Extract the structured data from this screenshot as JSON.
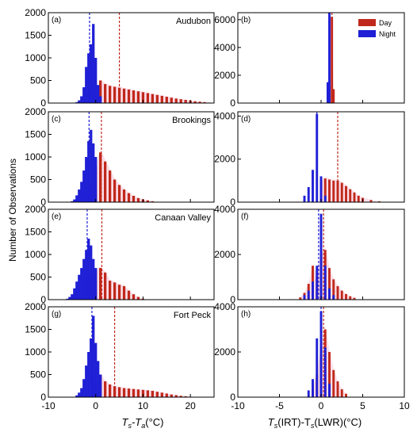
{
  "figure": {
    "ylabel": "Number of Observations",
    "xlabel_left": {
      "main": "T",
      "sub1": "s",
      "mid": "-T",
      "sub2": "a",
      "unit": "(°C)"
    },
    "xlabel_right": {
      "main": "T",
      "sub1": "s",
      "mid": "(IRT)-T",
      "sub2": "s",
      "unit": "(LWR)(°C)"
    },
    "legend": [
      {
        "label": "Day",
        "color": "#c0281b"
      },
      {
        "label": "Night",
        "color": "#1f1fd6"
      }
    ],
    "colors": {
      "day": "#c0281b",
      "night": "#1f1fd6",
      "shade": "#f7c6d8"
    }
  },
  "chart_data": [
    {
      "id": "a",
      "panel_label": "(a)",
      "site": "Audubon",
      "type": "bar",
      "xlim": [
        -10,
        25
      ],
      "ylim": [
        0,
        2000
      ],
      "yticks": [
        "0",
        "500",
        "1000",
        "1500",
        "2000"
      ],
      "xticks": [
        "-10",
        "0",
        "10",
        "20"
      ],
      "mean_night": -1.3,
      "mean_day": 5.0,
      "series": [
        {
          "name": "Night",
          "x": [
            -4,
            -3.5,
            -3,
            -2.5,
            -2,
            -1.5,
            -1,
            -0.5,
            0,
            0.5,
            1
          ],
          "values": [
            20,
            60,
            150,
            350,
            800,
            1100,
            1300,
            1750,
            1000,
            400,
            150
          ]
        },
        {
          "name": "Day",
          "x": [
            0,
            1,
            2,
            3,
            4,
            5,
            6,
            7,
            8,
            9,
            10,
            11,
            12,
            13,
            14,
            15,
            16,
            17,
            18,
            19,
            20,
            21,
            22,
            23,
            24
          ],
          "values": [
            150,
            500,
            420,
            380,
            360,
            340,
            320,
            300,
            280,
            260,
            240,
            220,
            200,
            180,
            160,
            140,
            120,
            100,
            85,
            70,
            55,
            40,
            30,
            20,
            10
          ]
        }
      ]
    },
    {
      "id": "b",
      "panel_label": "(b)",
      "site": "",
      "type": "bar",
      "xlim": [
        -10,
        10
      ],
      "ylim": [
        0,
        6500
      ],
      "yticks": [
        "0",
        "2000",
        "4000",
        "6000"
      ],
      "xticks": [
        "-10",
        "-5",
        "0",
        "5",
        "10"
      ],
      "mean_night": 1.0,
      "mean_day": 1.3,
      "series": [
        {
          "name": "Night",
          "x": [
            0.8,
            1.0
          ],
          "values": [
            1500,
            6500
          ]
        },
        {
          "name": "Day",
          "x": [
            1.3,
            1.5
          ],
          "values": [
            6200,
            1000
          ]
        }
      ]
    },
    {
      "id": "c",
      "panel_label": "(c)",
      "site": "Brookings",
      "type": "bar",
      "xlim": [
        -10,
        25
      ],
      "ylim": [
        0,
        2000
      ],
      "yticks": [
        "0",
        "500",
        "1000",
        "1500",
        "2000"
      ],
      "xticks": [
        "-10",
        "0",
        "10",
        "20"
      ],
      "mean_night": -1.4,
      "mean_day": 1.2,
      "series": [
        {
          "name": "Night",
          "x": [
            -5,
            -4.5,
            -4,
            -3.5,
            -3,
            -2.5,
            -2,
            -1.5,
            -1,
            -0.5,
            0
          ],
          "values": [
            20,
            60,
            150,
            280,
            450,
            700,
            1000,
            1350,
            1600,
            1300,
            1000
          ]
        },
        {
          "name": "Day",
          "x": [
            -1,
            0,
            1,
            2,
            3,
            4,
            5,
            6,
            7,
            8,
            9,
            10,
            11,
            12
          ],
          "values": [
            400,
            800,
            1100,
            900,
            700,
            500,
            380,
            280,
            200,
            140,
            90,
            60,
            40,
            20
          ]
        }
      ]
    },
    {
      "id": "d",
      "panel_label": "(d)",
      "site": "",
      "type": "bar",
      "xlim": [
        -10,
        10
      ],
      "ylim": [
        0,
        4200
      ],
      "yticks": [
        "0",
        "2000",
        "4000"
      ],
      "xticks": [
        "-10",
        "-5",
        "0",
        "5",
        "10"
      ],
      "mean_night": -0.5,
      "mean_day": 2.0,
      "series": [
        {
          "name": "Night",
          "x": [
            -2,
            -1.5,
            -1,
            -0.5,
            0,
            0.5
          ],
          "values": [
            300,
            700,
            1500,
            4100,
            1200,
            300
          ]
        },
        {
          "name": "Day",
          "x": [
            0,
            0.5,
            1,
            1.5,
            2,
            2.5,
            3,
            3.5,
            4,
            4.5,
            5,
            6,
            7
          ],
          "values": [
            1000,
            1100,
            1050,
            1000,
            1000,
            900,
            750,
            600,
            450,
            300,
            200,
            100,
            40
          ]
        }
      ]
    },
    {
      "id": "e",
      "panel_label": "(e)",
      "site": "Canaan Valley",
      "type": "bar",
      "xlim": [
        -10,
        25
      ],
      "ylim": [
        0,
        2000
      ],
      "yticks": [
        "0",
        "500",
        "1000",
        "1500",
        "2000"
      ],
      "xticks": [
        "-10",
        "0",
        "10",
        "20"
      ],
      "mean_night": -1.8,
      "mean_day": 1.3,
      "series": [
        {
          "name": "Night",
          "x": [
            -6,
            -5.5,
            -5,
            -4.5,
            -4,
            -3.5,
            -3,
            -2.5,
            -2,
            -1.5,
            -1,
            -0.5,
            0
          ],
          "values": [
            20,
            60,
            120,
            250,
            400,
            550,
            700,
            900,
            1100,
            1350,
            1200,
            900,
            700
          ]
        },
        {
          "name": "Day",
          "x": [
            -1,
            0,
            1,
            2,
            3,
            4,
            5,
            6,
            7,
            8,
            9,
            10
          ],
          "values": [
            500,
            650,
            700,
            600,
            420,
            380,
            330,
            300,
            200,
            120,
            60,
            20
          ]
        }
      ]
    },
    {
      "id": "f",
      "panel_label": "(f)",
      "site": "",
      "type": "bar",
      "xlim": [
        -10,
        10
      ],
      "ylim": [
        0,
        4000
      ],
      "yticks": [
        "0",
        "2000",
        "4000"
      ],
      "xticks": [
        "-10",
        "-5",
        "0",
        "5",
        "10"
      ],
      "mean_night": -0.3,
      "mean_day": 0.3,
      "series": [
        {
          "name": "Night",
          "x": [
            -2,
            -1.5,
            -1,
            -0.5,
            0,
            0.5,
            1,
            1.5
          ],
          "values": [
            200,
            400,
            800,
            1500,
            3800,
            1500,
            500,
            200
          ]
        },
        {
          "name": "Day",
          "x": [
            -2.5,
            -2,
            -1.5,
            -1,
            -0.5,
            0,
            0.5,
            1,
            1.5,
            2,
            2.5,
            3,
            3.5,
            4
          ],
          "values": [
            100,
            300,
            700,
            1500,
            1000,
            2000,
            2200,
            1400,
            900,
            600,
            400,
            250,
            150,
            80
          ]
        }
      ]
    },
    {
      "id": "g",
      "panel_label": "(g)",
      "site": "Fort Peck",
      "type": "bar",
      "xlim": [
        -10,
        25
      ],
      "ylim": [
        0,
        2000
      ],
      "yticks": [
        "0",
        "500",
        "1000",
        "1500",
        "2000"
      ],
      "xticks": [
        "-10",
        "0",
        "10",
        "20"
      ],
      "mean_night": -0.8,
      "mean_day": 4.0,
      "series": [
        {
          "name": "Night",
          "x": [
            -4,
            -3.5,
            -3,
            -2.5,
            -2,
            -1.5,
            -1,
            -0.5,
            0,
            0.5,
            1
          ],
          "values": [
            40,
            100,
            200,
            400,
            700,
            1000,
            1300,
            1800,
            1200,
            800,
            500
          ]
        },
        {
          "name": "Day",
          "x": [
            0,
            1,
            2,
            3,
            4,
            5,
            6,
            7,
            8,
            9,
            10,
            11,
            12,
            13,
            14,
            15,
            16,
            17,
            18,
            19,
            20
          ],
          "values": [
            300,
            500,
            350,
            280,
            240,
            220,
            200,
            190,
            180,
            170,
            160,
            150,
            140,
            120,
            100,
            80,
            60,
            45,
            30,
            20,
            10
          ]
        }
      ]
    },
    {
      "id": "h",
      "panel_label": "(h)",
      "site": "",
      "type": "bar",
      "xlim": [
        -10,
        10
      ],
      "ylim": [
        0,
        4000
      ],
      "yticks": [
        "0",
        "2000",
        "4000"
      ],
      "xticks": [
        "-10",
        "-5",
        "0",
        "5",
        "10"
      ],
      "mean_night": 0.0,
      "mean_day": 0.3,
      "series": [
        {
          "name": "Night",
          "x": [
            -1.5,
            -1,
            -0.5,
            0,
            0.5,
            1
          ],
          "values": [
            300,
            800,
            2600,
            3800,
            2200,
            600
          ]
        },
        {
          "name": "Day",
          "x": [
            -1,
            -0.5,
            0,
            0.5,
            1,
            1.5,
            2,
            2.5,
            3
          ],
          "values": [
            400,
            1000,
            2200,
            3000,
            2000,
            1200,
            700,
            350,
            150
          ]
        }
      ]
    }
  ]
}
